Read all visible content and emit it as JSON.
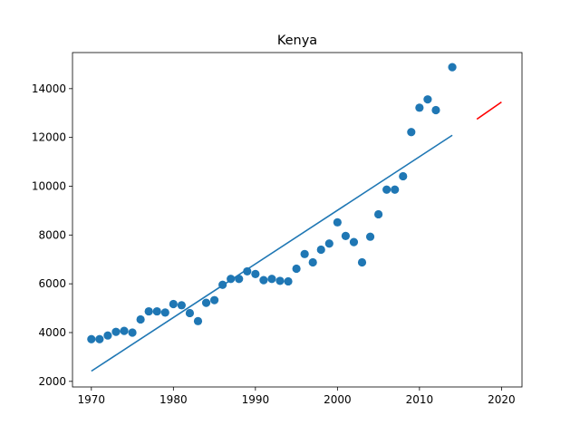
{
  "chart_data": {
    "type": "scatter",
    "title": "Kenya",
    "xlabel": "",
    "ylabel": "",
    "xlim": [
      1967.7,
      2022.5
    ],
    "ylim": [
      1770,
      15480
    ],
    "x_ticks": [
      1970,
      1980,
      1990,
      2000,
      2010,
      2020
    ],
    "x_tick_labels": [
      "1970",
      "1980",
      "1990",
      "2000",
      "2010",
      "2020"
    ],
    "y_ticks": [
      2000,
      4000,
      6000,
      8000,
      10000,
      12000,
      14000
    ],
    "y_tick_labels": [
      "2000",
      "4000",
      "6000",
      "8000",
      "10000",
      "12000",
      "14000"
    ],
    "grid": false,
    "colors": {
      "points": "#1f77b4",
      "fit_line": "#1f77b4",
      "forecast_line": "#ff0000"
    },
    "series": [
      {
        "type": "scatter",
        "x": [
          1970,
          1971,
          1972,
          1973,
          1974,
          1975,
          1976,
          1977,
          1978,
          1979,
          1980,
          1981,
          1982,
          1983,
          1984,
          1985,
          1986,
          1987,
          1988,
          1989,
          1990,
          1991,
          1992,
          1993,
          1994,
          1995,
          1996,
          1997,
          1998,
          1999,
          2000,
          2001,
          2002,
          2003,
          2004,
          2005,
          2006,
          2007,
          2008,
          2009,
          2010,
          2011,
          2012,
          2014
        ],
        "y": [
          3730,
          3730,
          3880,
          4030,
          4070,
          4000,
          4540,
          4870,
          4870,
          4820,
          5170,
          5120,
          4800,
          4470,
          5220,
          5330,
          5960,
          6200,
          6200,
          6510,
          6400,
          6150,
          6200,
          6120,
          6100,
          6620,
          7220,
          6880,
          7400,
          7650,
          8520,
          7960,
          7710,
          6880,
          7930,
          8850,
          9860,
          9860,
          10410,
          12220,
          13220,
          13560,
          13120,
          14880
        ]
      },
      {
        "type": "line",
        "x": [
          1970,
          2014
        ],
        "y": [
          2420,
          12090
        ]
      },
      {
        "type": "line",
        "x": [
          2017,
          2020
        ],
        "y": [
          12750,
          13450
        ]
      }
    ]
  }
}
